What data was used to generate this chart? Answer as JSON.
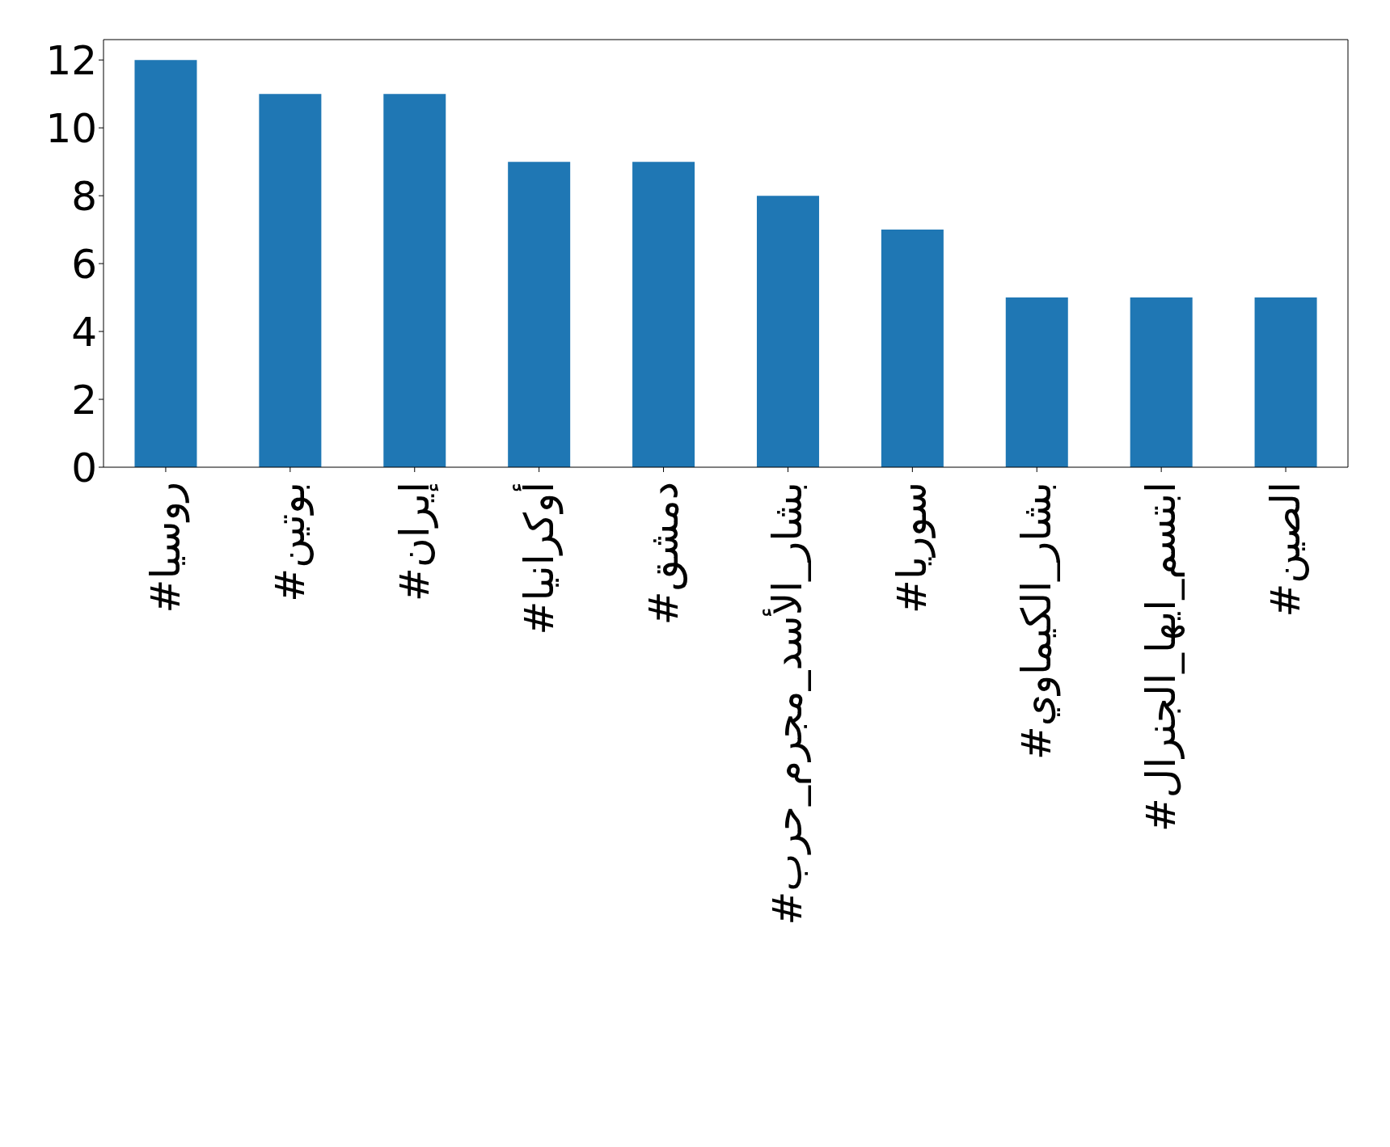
{
  "chart_data": {
    "type": "bar",
    "categories": [
      "#روسيا",
      "#بوتين",
      "#إيران",
      "#أوكرانيا",
      "#دمشق",
      "#بشار_الأسد_مجرم_حرب",
      "#سوريا",
      "#بشار_الكيماوي",
      "#ابتسم_ايها_الجنرال",
      "#الصين"
    ],
    "values": [
      12,
      11,
      11,
      9,
      9,
      8,
      7,
      5,
      5,
      5
    ],
    "color": "#1f77b4",
    "ylim": [
      0,
      12.6
    ],
    "yticks": [
      0,
      2,
      4,
      6,
      8,
      10,
      12
    ],
    "grid": false,
    "legend": false
  }
}
